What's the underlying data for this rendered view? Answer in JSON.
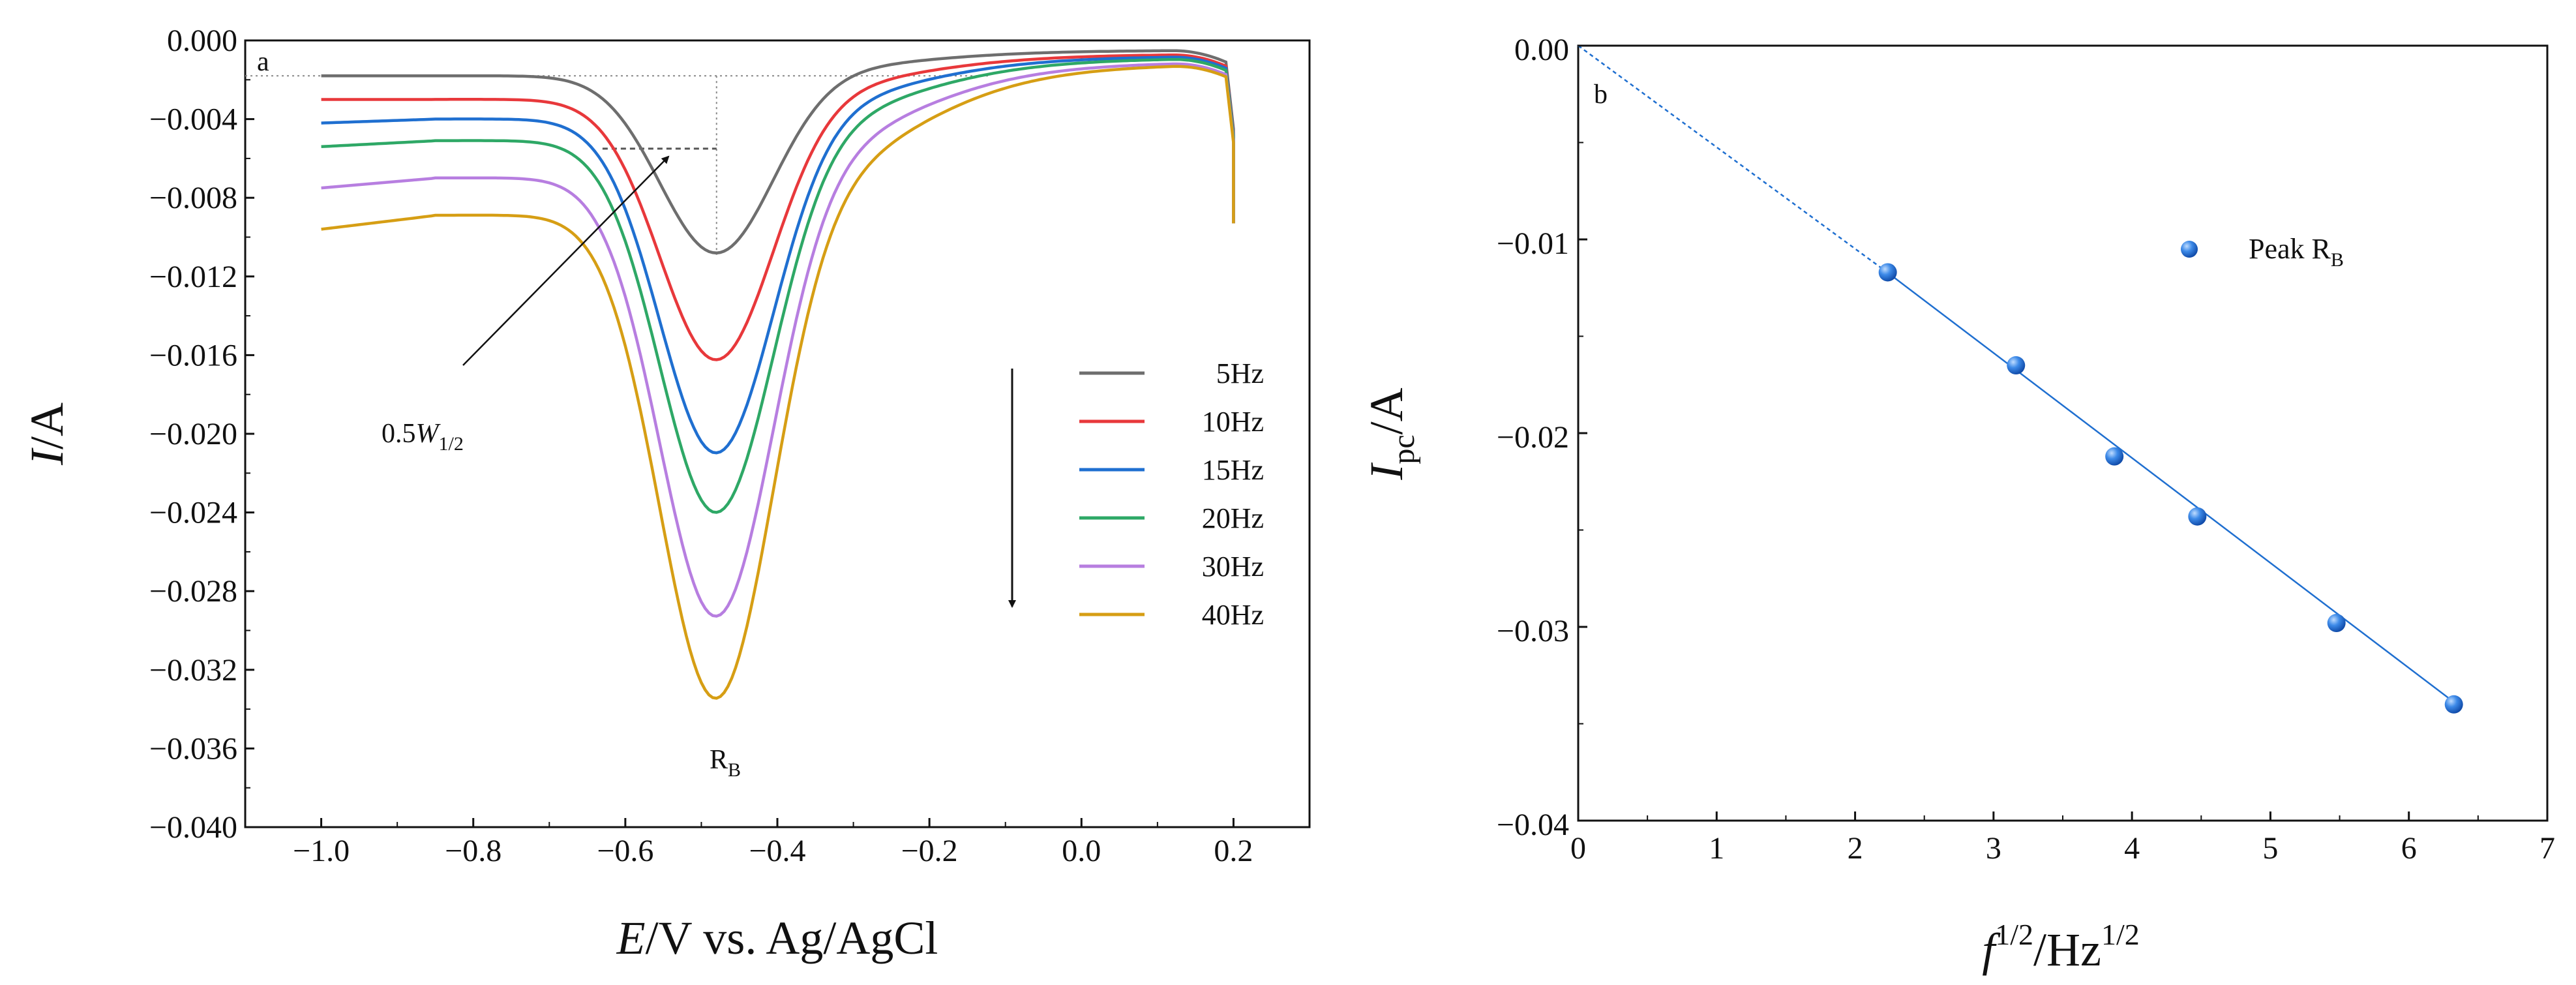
{
  "chart_data": [
    {
      "id": "a",
      "type": "line",
      "panel_label": "a",
      "xlabel": {
        "italic": "E",
        "rest": "/V vs. Ag/AgCl"
      },
      "ylabel": {
        "italic": "I",
        "rest": "/A"
      },
      "xlim": [
        -1.1,
        0.3
      ],
      "ylim": [
        -0.04,
        0.0
      ],
      "xticks": [
        -1.0,
        -0.8,
        -0.6,
        -0.4,
        -0.2,
        0.0,
        0.2
      ],
      "xtick_labels": [
        "−1.0",
        "−0.8",
        "−0.6",
        "−0.4",
        "−0.2",
        "0.0",
        "0.2"
      ],
      "yticks": [
        0.0,
        -0.004,
        -0.008,
        -0.012,
        -0.016,
        -0.02,
        -0.024,
        -0.028,
        -0.032,
        -0.036,
        -0.04
      ],
      "ytick_labels": [
        "0.000",
        "−0.004",
        "−0.008",
        "−0.012",
        "−0.016",
        "−0.020",
        "−0.024",
        "−0.028",
        "−0.032",
        "−0.036",
        "−0.040"
      ],
      "legend_position": "right",
      "series": [
        {
          "name": "5Hz",
          "color": "#6e6e6e",
          "start": -0.0018,
          "hump": -0.0018,
          "peak": -0.0109,
          "plateau": -0.0005
        },
        {
          "name": "10Hz",
          "color": "#e8383b",
          "start": -0.003,
          "hump": -0.003,
          "peak": -0.0164,
          "plateau": -0.0007
        },
        {
          "name": "15Hz",
          "color": "#1f6fd0",
          "start": -0.0042,
          "hump": -0.004,
          "peak": -0.0212,
          "plateau": -0.0008
        },
        {
          "name": "20Hz",
          "color": "#2ea866",
          "start": -0.0054,
          "hump": -0.0051,
          "peak": -0.0243,
          "plateau": -0.0009
        },
        {
          "name": "30Hz",
          "color": "#b77ee0",
          "start": -0.0075,
          "hump": -0.007,
          "peak": -0.0297,
          "plateau": -0.0011
        },
        {
          "name": "40Hz",
          "color": "#d69e14",
          "start": -0.0096,
          "hump": -0.0089,
          "peak": -0.034,
          "plateau": -0.0012
        }
      ],
      "peak_label": {
        "main": "R",
        "sub": "B"
      },
      "width_label": {
        "prefix": "0.5",
        "italic": "W",
        "sub": "1/2"
      },
      "peak_position_x": -0.48,
      "baseline_level": -0.0018,
      "half_height_level": -0.0055,
      "half_width_x_range": [
        -0.63,
        -0.48
      ]
    },
    {
      "id": "b",
      "type": "scatter",
      "panel_label": "b",
      "xlabel": {
        "italic": "f",
        "sup1": "1/2",
        "mid": "/Hz",
        "sup2": "1/2"
      },
      "ylabel": {
        "italic": "I",
        "sub": "pc",
        "rest": "/A"
      },
      "xlim": [
        0,
        7
      ],
      "ylim": [
        -0.04,
        0.0
      ],
      "xticks": [
        0,
        1,
        2,
        3,
        4,
        5,
        6,
        7
      ],
      "xtick_labels": [
        "0",
        "1",
        "2",
        "3",
        "4",
        "5",
        "6",
        "7"
      ],
      "yticks": [
        0.0,
        -0.01,
        -0.02,
        -0.03,
        -0.04
      ],
      "ytick_labels": [
        "0.00",
        "−0.01",
        "−0.02",
        "−0.03",
        "−0.04"
      ],
      "points": [
        {
          "x": 2.236,
          "y": -0.0117
        },
        {
          "x": 3.162,
          "y": -0.0165
        },
        {
          "x": 3.873,
          "y": -0.0212
        },
        {
          "x": 4.472,
          "y": -0.0243
        },
        {
          "x": 5.477,
          "y": -0.0298
        },
        {
          "x": 6.325,
          "y": -0.034
        }
      ],
      "fit_line": {
        "slope": -0.00542,
        "intercept": 0.0004,
        "dashed_x_range": [
          0,
          2.236
        ],
        "solid_x_range": [
          2.236,
          6.325
        ]
      },
      "legend": {
        "main": "Peak R",
        "sub": "B"
      },
      "marker_color": "#1f6fd0",
      "line_color": "#1f6fd0"
    }
  ]
}
